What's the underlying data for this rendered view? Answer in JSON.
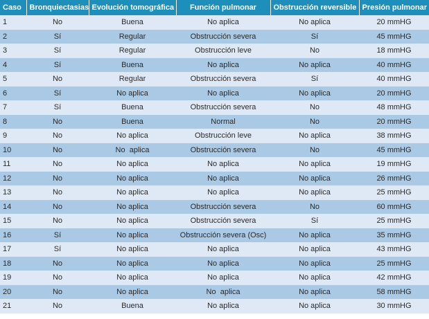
{
  "headers": [
    "Caso",
    "Bronquiectasias",
    "Evolución tomográfica",
    "Función pulmonar",
    "Obstrucción reversible",
    "Presión pulmonar"
  ],
  "rows": [
    [
      "1",
      "No",
      "Buena",
      "No aplica",
      "No aplica",
      "20 mmHG"
    ],
    [
      "2",
      "Sí",
      "Regular",
      "Obstrucción severa",
      "Sí",
      "45 mmHG"
    ],
    [
      "3",
      "Sí",
      "Regular",
      "Obstrucción leve",
      "No",
      "18 mmHG"
    ],
    [
      "4",
      "Sí",
      "Buena",
      "No aplica",
      "No aplica",
      "40 mmHG"
    ],
    [
      "5",
      "No",
      "Regular",
      "Obstrucción severa",
      "Sí",
      "40 mmHG"
    ],
    [
      "6",
      "Sí",
      "No aplica",
      "No aplica",
      "No aplica",
      "20 mmHG"
    ],
    [
      "7",
      "Sí",
      "Buena",
      "Obstrucción severa",
      "No",
      "48 mmHG"
    ],
    [
      "8",
      "No",
      "Buena",
      "Normal",
      "No",
      "20 mmHG"
    ],
    [
      "9",
      "No",
      "No aplica",
      "Obstrucción leve",
      "No aplica",
      "38 mmHG"
    ],
    [
      "10",
      "No",
      "No  aplica",
      "Obstrucción severa",
      "No",
      "45 mmHG"
    ],
    [
      "11",
      "No",
      "No aplica",
      "No aplica",
      "No aplica",
      "19 mmHG"
    ],
    [
      "12",
      "No",
      "No aplica",
      "No aplica",
      "No aplica",
      "26 mmHG"
    ],
    [
      "13",
      "No",
      "No aplica",
      "No aplica",
      "No aplica",
      "25 mmHG"
    ],
    [
      "14",
      "No",
      "No aplica",
      "Obstrucción severa",
      "No",
      "60 mmHG"
    ],
    [
      "15",
      "No",
      "No aplica",
      "Obstrucción severa",
      "Sí",
      "25 mmHG"
    ],
    [
      "16",
      "Sí",
      "No aplica",
      "Obstrucción severa (Osc)",
      "No aplica",
      "35 mmHG"
    ],
    [
      "17",
      "Sí",
      "No aplica",
      "No aplica",
      "No aplica",
      "43 mmHG"
    ],
    [
      "18",
      "No",
      "No aplica",
      "No aplica",
      "No aplica",
      "25 mmHG"
    ],
    [
      "19",
      "No",
      "No aplica",
      "No aplica",
      "No aplica",
      "42 mmHG"
    ],
    [
      "20",
      "No",
      "No aplica",
      "No  aplica",
      "No aplica",
      "58 mmHG"
    ],
    [
      "21",
      "No",
      "Buena",
      "No aplica",
      "No aplica",
      "30 mmHG"
    ]
  ],
  "colors": {
    "header": "#1e8fba",
    "row_light": "#dfe9f5",
    "row_dark": "#aac9e4"
  }
}
